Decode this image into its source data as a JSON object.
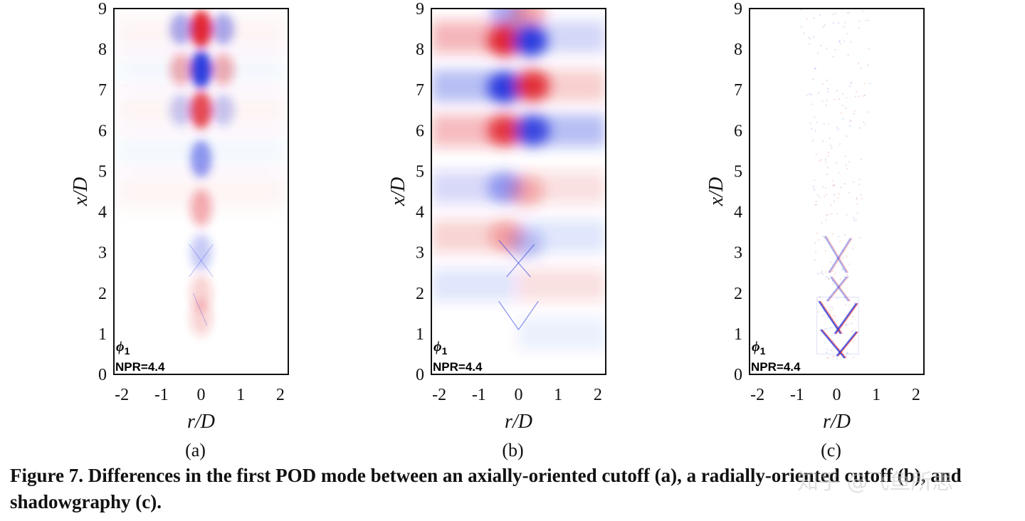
{
  "figure": {
    "panels": [
      {
        "id": "a",
        "sublabel": "(a)",
        "mode_symbol": "ϕ",
        "mode_index": "1",
        "npr_label": "NPR=4.4",
        "style": "axial"
      },
      {
        "id": "b",
        "sublabel": "(b)",
        "mode_symbol": "ϕ",
        "mode_index": "1",
        "npr_label": "NPR=4.4",
        "style": "radial"
      },
      {
        "id": "c",
        "sublabel": "(c)",
        "mode_symbol": "ϕ",
        "mode_index": "1",
        "npr_label": "NPR=4.4",
        "style": "shadow"
      }
    ],
    "caption": "Figure 7. Differences in the first POD mode between an axially-oriented cutoff (a), a radially-oriented cutoff (b), and shadowgraphy (c).",
    "watermark": "知乎 @飞鱼所思"
  },
  "chart_data": [
    {
      "type": "heatmap",
      "panel": "a",
      "xlabel": "r/D",
      "ylabel": "x/D",
      "xlim": [
        -2.2,
        2.2
      ],
      "ylim": [
        0,
        9
      ],
      "xticks": [
        "-2",
        "-1",
        "0",
        "1",
        "2"
      ],
      "yticks": [
        "0",
        "1",
        "2",
        "3",
        "4",
        "5",
        "6",
        "7",
        "8",
        "9"
      ]
    },
    {
      "type": "heatmap",
      "panel": "b",
      "xlabel": "r/D",
      "ylabel": "x/D",
      "xlim": [
        -2.2,
        2.2
      ],
      "ylim": [
        0,
        9
      ],
      "xticks": [
        "-2",
        "-1",
        "0",
        "1",
        "2"
      ],
      "yticks": [
        "0",
        "1",
        "2",
        "3",
        "4",
        "5",
        "6",
        "7",
        "8",
        "9"
      ]
    },
    {
      "type": "heatmap",
      "panel": "c",
      "xlabel": "r/D",
      "ylabel": "x/D",
      "xlim": [
        -2.2,
        2.2
      ],
      "ylim": [
        0,
        9
      ],
      "xticks": [
        "-2",
        "-1",
        "0",
        "1",
        "2"
      ],
      "yticks": [
        "0",
        "1",
        "2",
        "3",
        "4",
        "5",
        "6",
        "7",
        "8",
        "9"
      ]
    }
  ]
}
